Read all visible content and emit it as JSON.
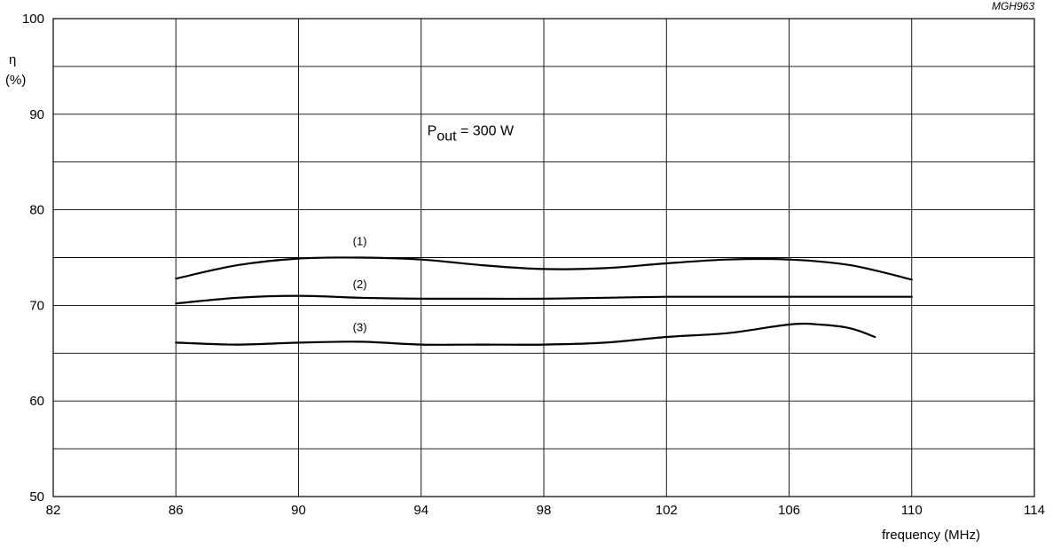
{
  "figure_code": "MGH963",
  "chart_data": {
    "type": "line",
    "xlabel": "frequency (MHz)",
    "ylabel_symbol": "η",
    "ylabel_unit": "(%)",
    "xlim": [
      82,
      114
    ],
    "ylim": [
      50,
      100
    ],
    "xticks": [
      82,
      86,
      90,
      94,
      98,
      102,
      106,
      110,
      114
    ],
    "yticks": [
      50,
      60,
      70,
      80,
      90,
      100
    ],
    "grid": true,
    "x_grid_step": 4,
    "y_grid_step": 5,
    "annotation": {
      "base": "P",
      "subscript": "out",
      "text": " = 300 W",
      "x": 94.2,
      "y": 87.8
    },
    "series": [
      {
        "name": "(1)",
        "label_pos": [
          92,
          76.3
        ],
        "x": [
          86,
          88,
          90,
          92,
          94,
          96,
          98,
          100,
          102,
          104,
          106,
          108,
          110
        ],
        "y": [
          72.8,
          74.2,
          74.9,
          75.0,
          74.8,
          74.2,
          73.8,
          73.9,
          74.4,
          74.8,
          74.8,
          74.2,
          72.7
        ]
      },
      {
        "name": "(2)",
        "label_pos": [
          92,
          71.8
        ],
        "x": [
          86,
          88,
          90,
          92,
          94,
          96,
          98,
          100,
          102,
          104,
          106,
          108,
          110
        ],
        "y": [
          70.2,
          70.8,
          71.0,
          70.8,
          70.7,
          70.7,
          70.7,
          70.8,
          70.9,
          70.9,
          70.9,
          70.9,
          70.9
        ]
      },
      {
        "name": "(3)",
        "label_pos": [
          92,
          67.3
        ],
        "x": [
          86,
          88,
          90,
          92,
          94,
          96,
          98,
          100,
          102,
          104,
          106,
          107,
          108,
          108.8
        ],
        "y": [
          66.1,
          65.9,
          66.1,
          66.2,
          65.9,
          65.9,
          65.9,
          66.1,
          66.7,
          67.1,
          68.0,
          68.0,
          67.6,
          66.7
        ]
      }
    ]
  }
}
